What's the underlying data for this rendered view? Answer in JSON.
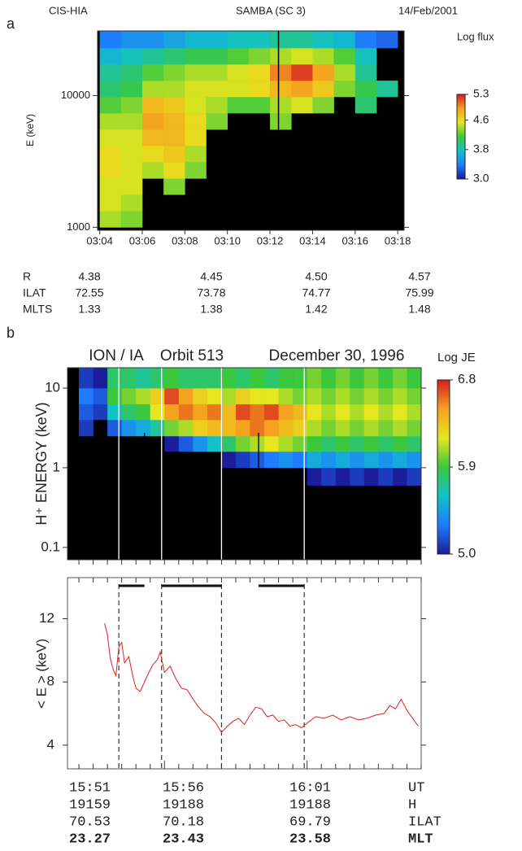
{
  "panel_a": {
    "label": "a",
    "header": [
      "CIS-HIA",
      "SAMBA (SC 3)",
      "14/Feb/2001"
    ],
    "spectrogram": {
      "type": "heatmap",
      "ylabel": "E (keV)",
      "log_y": true,
      "xlim": [
        183.9,
        198.3
      ],
      "xticks": [
        {
          "value": 184,
          "label": "03:04"
        },
        {
          "value": 186,
          "label": "03:06"
        },
        {
          "value": 188,
          "label": "03:08"
        },
        {
          "value": 190,
          "label": "03:10"
        },
        {
          "value": 192,
          "label": "03:12"
        },
        {
          "value": 194,
          "label": "03:14"
        },
        {
          "value": 196,
          "label": "03:16"
        },
        {
          "value": 198,
          "label": "03:18"
        }
      ],
      "ylim": [
        950,
        31000
      ],
      "yticks": [
        1000,
        10000
      ],
      "xbins": [
        184,
        185,
        186,
        187,
        188,
        189,
        190,
        191,
        192,
        193,
        194,
        195,
        196,
        197,
        198
      ],
      "ybins": [
        1000,
        1330,
        1770,
        2350,
        3130,
        4160,
        5530,
        7360,
        9790,
        13000,
        17300,
        23000,
        31000
      ],
      "z": [
        [
          4.4,
          4.3,
          null,
          null,
          null,
          null,
          null,
          null,
          null,
          null,
          null,
          null,
          null,
          null
        ],
        [
          4.5,
          4.4,
          null,
          null,
          null,
          null,
          null,
          null,
          null,
          null,
          null,
          null,
          null,
          null
        ],
        [
          4.5,
          4.5,
          null,
          4.3,
          null,
          null,
          null,
          null,
          null,
          null,
          null,
          null,
          null,
          null
        ],
        [
          4.6,
          4.5,
          4.4,
          4.6,
          4.3,
          null,
          null,
          null,
          null,
          null,
          null,
          null,
          null,
          null
        ],
        [
          4.6,
          4.5,
          4.6,
          4.7,
          4.4,
          null,
          null,
          null,
          null,
          null,
          null,
          null,
          null,
          null
        ],
        [
          4.5,
          4.5,
          4.8,
          4.8,
          4.6,
          null,
          null,
          null,
          null,
          null,
          null,
          null,
          null,
          null
        ],
        [
          4.4,
          4.4,
          4.9,
          4.8,
          4.6,
          4.3,
          null,
          null,
          4.3,
          null,
          null,
          null,
          null,
          null
        ],
        [
          4.2,
          4.3,
          4.8,
          4.7,
          4.5,
          4.4,
          4.2,
          4.2,
          4.4,
          4.5,
          4.3,
          null,
          4.0,
          null
        ],
        [
          4.0,
          4.1,
          4.4,
          4.4,
          4.5,
          4.5,
          4.5,
          4.6,
          4.8,
          4.9,
          4.7,
          4.3,
          4.1,
          3.9
        ],
        [
          3.9,
          4.0,
          4.2,
          4.3,
          4.4,
          4.4,
          4.5,
          4.6,
          5.0,
          5.2,
          4.9,
          4.4,
          3.9,
          null
        ],
        [
          3.7,
          3.8,
          3.9,
          4.0,
          4.1,
          4.1,
          4.2,
          4.3,
          4.4,
          4.5,
          4.4,
          4.2,
          3.8,
          null
        ],
        [
          3.4,
          3.5,
          3.5,
          3.6,
          3.7,
          3.7,
          3.8,
          3.8,
          3.9,
          3.9,
          3.8,
          3.7,
          3.4,
          3.3
        ]
      ],
      "vlines": [
        192.4
      ],
      "colorbar": {
        "label": "Log flux",
        "clim": [
          3.0,
          5.3
        ],
        "ticks": [
          5.3,
          4.6,
          3.8,
          {
            "value": 3,
            "label": "3.0"
          }
        ]
      },
      "colorscale": [
        "#1c1c9c",
        "#1e7cff",
        "#12c2c8",
        "#3cc83c",
        "#e6e61e",
        "#f5a21e",
        "#d41e1e"
      ]
    },
    "table": {
      "rows": [
        [
          "R",
          "4.38",
          "4.45",
          "4.50",
          "4.57"
        ],
        [
          "ILAT",
          "72.55",
          "73.78",
          "74.77",
          "75.99"
        ],
        [
          "MLTS",
          "1.33",
          "1.38",
          "1.42",
          "1.48"
        ]
      ]
    }
  },
  "panel_b": {
    "label": "b",
    "header": [
      "ION / IA",
      "Orbit 513",
      "December 30, 1996"
    ],
    "spectrogram": {
      "type": "heatmap",
      "ylabel": "H⁺ ENERGY (keV)",
      "log_y": true,
      "xlim": [
        52.6,
        65
      ],
      "ylim": [
        0.07,
        18
      ],
      "yticks": [
        0.1,
        1,
        10
      ],
      "xbins": [
        53,
        53.5,
        54,
        54.5,
        55,
        55.5,
        56,
        56.5,
        57,
        57.5,
        58,
        58.5,
        59,
        59.5,
        60,
        60.5,
        61,
        61.5,
        62,
        62.5,
        63,
        63.5,
        64,
        64.5,
        65
      ],
      "ybins": [
        0.08,
        0.15,
        0.3,
        0.6,
        1.0,
        1.6,
        2.5,
        4,
        6.3,
        10,
        18
      ],
      "z": [
        [
          null,
          null,
          null,
          null,
          null,
          null,
          null,
          null,
          null,
          null,
          null,
          null,
          null,
          null,
          null,
          null,
          null,
          null,
          null,
          null,
          null,
          null,
          null,
          null
        ],
        [
          null,
          null,
          null,
          null,
          null,
          null,
          null,
          null,
          null,
          null,
          null,
          null,
          null,
          null,
          null,
          null,
          null,
          null,
          null,
          null,
          null,
          null,
          null,
          null
        ],
        [
          null,
          null,
          null,
          null,
          null,
          null,
          null,
          null,
          null,
          null,
          null,
          null,
          null,
          null,
          null,
          null,
          null,
          null,
          null,
          null,
          null,
          null,
          null,
          null
        ],
        [
          null,
          null,
          null,
          null,
          null,
          null,
          null,
          null,
          null,
          null,
          null,
          null,
          null,
          null,
          null,
          null,
          5.0,
          5.1,
          5.0,
          5.1,
          5.0,
          5.1,
          5.0,
          5.1
        ],
        [
          null,
          null,
          null,
          null,
          null,
          null,
          null,
          null,
          null,
          null,
          5.0,
          5.1,
          5.2,
          5.3,
          5.4,
          5.3,
          5.5,
          5.4,
          5.5,
          5.4,
          5.5,
          5.4,
          5.5,
          5.4
        ],
        [
          null,
          null,
          null,
          null,
          null,
          null,
          5.0,
          5.2,
          5.4,
          5.6,
          5.8,
          6.0,
          6.1,
          6.2,
          6.1,
          6.0,
          5.9,
          5.8,
          5.9,
          5.8,
          5.9,
          5.8,
          5.9,
          5.8
        ],
        [
          5.1,
          null,
          5.2,
          5.4,
          5.5,
          5.7,
          6.0,
          6.1,
          6.3,
          6.4,
          6.4,
          6.5,
          6.6,
          6.5,
          6.4,
          6.3,
          6.1,
          6.0,
          6.1,
          6.0,
          6.1,
          6.0,
          6.1,
          6.0
        ],
        [
          5.2,
          5.1,
          5.6,
          5.8,
          5.9,
          6.2,
          6.5,
          6.6,
          6.5,
          6.6,
          6.4,
          6.7,
          6.6,
          6.7,
          6.5,
          6.4,
          6.2,
          6.1,
          6.2,
          6.1,
          6.2,
          6.1,
          6.2,
          6.1
        ],
        [
          5.3,
          5.2,
          5.9,
          6.0,
          6.1,
          6.3,
          6.7,
          6.5,
          6.3,
          6.2,
          6.1,
          6.3,
          6.2,
          6.2,
          6.1,
          6.0,
          6.1,
          6.0,
          6.1,
          6.0,
          6.1,
          6.0,
          6.1,
          6.0
        ],
        [
          5.1,
          5.0,
          5.8,
          5.8,
          5.7,
          5.8,
          5.9,
          5.8,
          5.8,
          5.8,
          5.9,
          5.8,
          5.9,
          5.8,
          5.9,
          5.9,
          6.0,
          5.9,
          6.0,
          5.9,
          6.0,
          5.9,
          6.0,
          5.9
        ]
      ],
      "white_lines": [
        54.4,
        55.9,
        58.0,
        60.9
      ],
      "black_lines": [
        55.3,
        59.3
      ],
      "colorbar": {
        "label": "Log JE",
        "clim": [
          5.0,
          6.8
        ],
        "ticks": [
          6.8,
          5.9,
          {
            "value": 5,
            "label": "5.0"
          }
        ]
      },
      "colorscale": [
        "#1c1c9c",
        "#1e7cff",
        "#12c2c8",
        "#3cc83c",
        "#e6e61e",
        "#f5a21e",
        "#d41e1e"
      ]
    },
    "line_plot": {
      "type": "line",
      "ylabel": "< E > (keV)",
      "color": "#e02020",
      "xlim": [
        52.6,
        65
      ],
      "ylim": [
        2.5,
        14.6
      ],
      "yticks": [
        4,
        8,
        12
      ],
      "minor_ticks": [
        53,
        53.5,
        54,
        54.5,
        55,
        55.5,
        56,
        56.5,
        57,
        57.5,
        58,
        58.5,
        59,
        59.5,
        60,
        60.5,
        61,
        61.5,
        62,
        62.5,
        63,
        63.5,
        64,
        64.5,
        65
      ],
      "x": [
        53.9,
        54.0,
        54.1,
        54.2,
        54.3,
        54.4,
        54.5,
        54.6,
        54.75,
        54.9,
        55.0,
        55.15,
        55.3,
        55.45,
        55.6,
        55.75,
        55.85,
        56.0,
        56.2,
        56.4,
        56.6,
        56.8,
        57.0,
        57.2,
        57.4,
        57.6,
        57.8,
        58.0,
        58.2,
        58.4,
        58.6,
        58.8,
        59.0,
        59.2,
        59.4,
        59.6,
        59.8,
        60.0,
        60.2,
        60.4,
        60.6,
        60.8,
        61.0,
        61.3,
        61.6,
        61.9,
        62.2,
        62.5,
        62.8,
        63.1,
        63.4,
        63.7,
        63.9,
        64.1,
        64.3,
        64.5,
        64.7,
        64.9
      ],
      "y": [
        11.7,
        11.0,
        9.5,
        8.8,
        8.4,
        10.2,
        10.5,
        9.2,
        9.6,
        8.3,
        7.6,
        7.4,
        8.0,
        8.6,
        9.1,
        9.4,
        9.9,
        8.6,
        9.0,
        8.2,
        7.6,
        7.5,
        6.9,
        6.4,
        6.0,
        5.8,
        5.4,
        4.8,
        5.2,
        5.5,
        5.7,
        5.3,
        5.9,
        6.4,
        6.3,
        5.8,
        5.9,
        5.5,
        5.6,
        5.2,
        5.3,
        5.1,
        5.4,
        5.8,
        5.7,
        5.9,
        5.6,
        5.8,
        5.6,
        5.7,
        5.9,
        6.0,
        6.5,
        6.3,
        6.9,
        6.2,
        5.7,
        5.2
      ],
      "dashed_lines": [
        54.4,
        55.9,
        58.0,
        60.9
      ],
      "intervals": [
        [
          54.4,
          55.3
        ],
        [
          55.9,
          58.0
        ],
        [
          59.3,
          60.9
        ]
      ]
    },
    "table": {
      "rows": [
        [
          "15:51",
          "15:56",
          "16:01",
          "UT"
        ],
        [
          "19159",
          "19188",
          "19188",
          "H"
        ],
        [
          "70.53",
          "70.18",
          "69.79",
          "ILAT"
        ],
        [
          "23.27",
          "23.43",
          "23.58",
          "MLT"
        ]
      ]
    }
  }
}
